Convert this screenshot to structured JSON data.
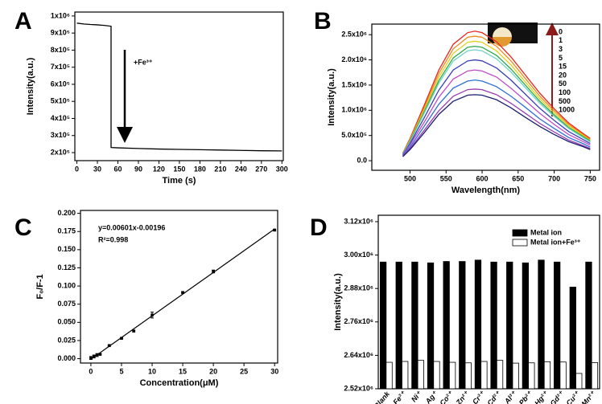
{
  "chart_data": [
    {
      "type": "line",
      "panel": "A",
      "xlabel": "Time (s)",
      "ylabel": "Intensity(a.u.)",
      "annotation": "+Fe³⁺",
      "color": "#000000",
      "x": [
        0,
        10,
        20,
        30,
        40,
        50,
        50,
        60,
        90,
        120,
        150,
        180,
        210,
        240,
        270,
        300
      ],
      "values": [
        958000,
        953000,
        950000,
        948000,
        945000,
        940000,
        230000,
        228000,
        224000,
        221000,
        219000,
        217000,
        215000,
        213000,
        211000,
        210000
      ],
      "xlim": [
        -3,
        302
      ],
      "ylim": [
        153000,
        1023000
      ],
      "xticks": [
        0,
        30,
        60,
        90,
        120,
        150,
        180,
        210,
        240,
        270,
        300
      ],
      "yticks": [
        {
          "value": 200000,
          "label": "2x10⁵"
        },
        {
          "value": 300000,
          "label": "3x10⁵"
        },
        {
          "value": 400000,
          "label": "4x10⁵"
        },
        {
          "value": 500000,
          "label": "5x10⁵"
        },
        {
          "value": 600000,
          "label": "6x10⁵"
        },
        {
          "value": 700000,
          "label": "7x10⁵"
        },
        {
          "value": 800000,
          "label": "8x10⁵"
        },
        {
          "value": 900000,
          "label": "9x10⁵"
        },
        {
          "value": 1000000,
          "label": "1x10⁶"
        }
      ]
    },
    {
      "type": "line",
      "panel": "B",
      "xlabel": "Wavelength(nm)",
      "ylabel": "Intensity(a.u.)",
      "x": [
        490,
        500,
        520,
        540,
        560,
        580,
        590,
        600,
        620,
        640,
        660,
        680,
        700,
        720,
        740,
        750
      ],
      "series": [
        {
          "name": "0",
          "color": "#e8231f",
          "values": [
            150000,
            440000,
            1110000,
            1800000,
            2310000,
            2540000,
            2570000,
            2540000,
            2360000,
            2060000,
            1700000,
            1340000,
            1030000,
            750000,
            540000,
            440000
          ]
        },
        {
          "name": "1",
          "color": "#f08a1c",
          "values": [
            150000,
            420000,
            1060000,
            1730000,
            2220000,
            2450000,
            2470000,
            2450000,
            2270000,
            1980000,
            1630000,
            1280000,
            990000,
            720000,
            520000,
            420000
          ]
        },
        {
          "name": "3",
          "color": "#e3cf1a",
          "values": [
            140000,
            400000,
            1020000,
            1660000,
            2130000,
            2350000,
            2370000,
            2350000,
            2180000,
            1900000,
            1560000,
            1230000,
            950000,
            690000,
            500000,
            400000
          ]
        },
        {
          "name": "5",
          "color": "#2ea84a",
          "values": [
            140000,
            390000,
            980000,
            1590000,
            2040000,
            2250000,
            2270000,
            2250000,
            2090000,
            1820000,
            1500000,
            1180000,
            910000,
            660000,
            480000,
            390000
          ]
        },
        {
          "name": "15",
          "color": "#6fd3c8",
          "values": [
            130000,
            370000,
            950000,
            1540000,
            1980000,
            2180000,
            2200000,
            2180000,
            2020000,
            1760000,
            1450000,
            1140000,
            880000,
            640000,
            460000,
            370000
          ]
        },
        {
          "name": "20",
          "color": "#3a3fb8",
          "values": [
            120000,
            340000,
            860000,
            1400000,
            1800000,
            1980000,
            2000000,
            1980000,
            1840000,
            1600000,
            1320000,
            1040000,
            800000,
            580000,
            420000,
            340000
          ]
        },
        {
          "name": "50",
          "color": "#c04bc8",
          "values": [
            110000,
            310000,
            770000,
            1260000,
            1620000,
            1780000,
            1800000,
            1780000,
            1660000,
            1440000,
            1190000,
            940000,
            720000,
            520000,
            380000,
            310000
          ]
        },
        {
          "name": "100",
          "color": "#2b6fd6",
          "values": [
            100000,
            270000,
            690000,
            1120000,
            1440000,
            1580000,
            1600000,
            1580000,
            1470000,
            1280000,
            1060000,
            830000,
            640000,
            460000,
            340000,
            270000
          ]
        },
        {
          "name": "500",
          "color": "#9a3db0",
          "values": [
            90000,
            240000,
            610000,
            990000,
            1280000,
            1410000,
            1420000,
            1410000,
            1310000,
            1140000,
            940000,
            740000,
            570000,
            410000,
            300000,
            240000
          ]
        },
        {
          "name": "1000",
          "color": "#1c1f6e",
          "values": [
            80000,
            220000,
            560000,
            920000,
            1180000,
            1300000,
            1310000,
            1300000,
            1210000,
            1050000,
            860000,
            680000,
            520000,
            380000,
            280000,
            220000
          ]
        }
      ],
      "xlim": [
        447,
        763
      ],
      "ylim": [
        -190000,
        2710000
      ],
      "xticks": [
        500,
        550,
        600,
        650,
        700,
        750
      ],
      "yticks": [
        {
          "value": 0,
          "label": "0.0"
        },
        {
          "value": 500000,
          "label": "5.0x10⁵"
        },
        {
          "value": 1000000,
          "label": "1.0x10⁶"
        },
        {
          "value": 1500000,
          "label": "1.5x10⁶"
        },
        {
          "value": 2000000,
          "label": "2.0x10⁶"
        },
        {
          "value": 2500000,
          "label": "2.5x10⁶"
        }
      ]
    },
    {
      "type": "scatter",
      "panel": "C",
      "xlabel": "Concentration(μM)",
      "ylabel": "F₀/F-1",
      "annotations": [
        "y=0.00601x-0.00196",
        "R²=0.998"
      ],
      "color": "#000000",
      "x": [
        0,
        0.5,
        1,
        1.5,
        3,
        5,
        7,
        10,
        15,
        20,
        30
      ],
      "values": [
        0.001,
        0.003,
        0.005,
        0.006,
        0.018,
        0.028,
        0.038,
        0.06,
        0.091,
        0.12,
        0.177
      ],
      "errors": [
        0.002,
        0.002,
        0.002,
        0.001,
        0.001,
        0.001,
        0.001,
        0.004,
        0.001,
        0.002,
        0.001
      ],
      "xlim": [
        -1.7,
        30.5
      ],
      "ylim": [
        -0.006,
        0.204
      ],
      "xticks": [
        0,
        5,
        10,
        15,
        20,
        25,
        30
      ],
      "yticks": [
        {
          "value": 0,
          "label": "0.000"
        },
        {
          "value": 0.025,
          "label": "0.025"
        },
        {
          "value": 0.05,
          "label": "0.050"
        },
        {
          "value": 0.075,
          "label": "0.075"
        },
        {
          "value": 0.1,
          "label": "0.100"
        },
        {
          "value": 0.125,
          "label": "0.125"
        },
        {
          "value": 0.15,
          "label": "0.150"
        },
        {
          "value": 0.175,
          "label": "0.175"
        },
        {
          "value": 0.2,
          "label": "0.200"
        }
      ]
    },
    {
      "type": "bar",
      "panel": "D",
      "ylabel": "Intensity(a.u.)",
      "categories": [
        "Blank",
        "Fe³⁺",
        "Ni⁺",
        "Ag⁺",
        "Co²⁺",
        "Zn²⁺",
        "Cr³⁺",
        "Cd²⁺",
        "Al³⁺",
        "Pb²⁺",
        "Hg²⁺",
        "Gd³⁺",
        "Cu²⁺",
        "Mn²⁺"
      ],
      "series": [
        {
          "name": "Metal ion",
          "color": "#000000",
          "values": [
            2975000,
            2975000,
            2975000,
            2972000,
            2977000,
            2977000,
            2982000,
            2975000,
            2975000,
            2972000,
            2982000,
            2975000,
            2885000,
            2975000
          ]
        },
        {
          "name": "Metal ion+Fe³⁺",
          "color": "#ffffff",
          "values": [
            2615000,
            2618000,
            2622000,
            2618000,
            2615000,
            2613000,
            2618000,
            2622000,
            2612000,
            2613000,
            2617000,
            2616000,
            2575000,
            2614000
          ]
        }
      ],
      "ylim": [
        2520000,
        3143000
      ],
      "yticks": [
        {
          "value": 2520000,
          "label": "2.52x10⁶"
        },
        {
          "value": 2640000,
          "label": "2.64x10⁶"
        },
        {
          "value": 2760000,
          "label": "2.76x10⁶"
        },
        {
          "value": 2880000,
          "label": "2.88x10⁶"
        },
        {
          "value": 3000000,
          "label": "3.00x10⁶"
        },
        {
          "value": 3120000,
          "label": "3.12x10⁶"
        }
      ]
    }
  ]
}
